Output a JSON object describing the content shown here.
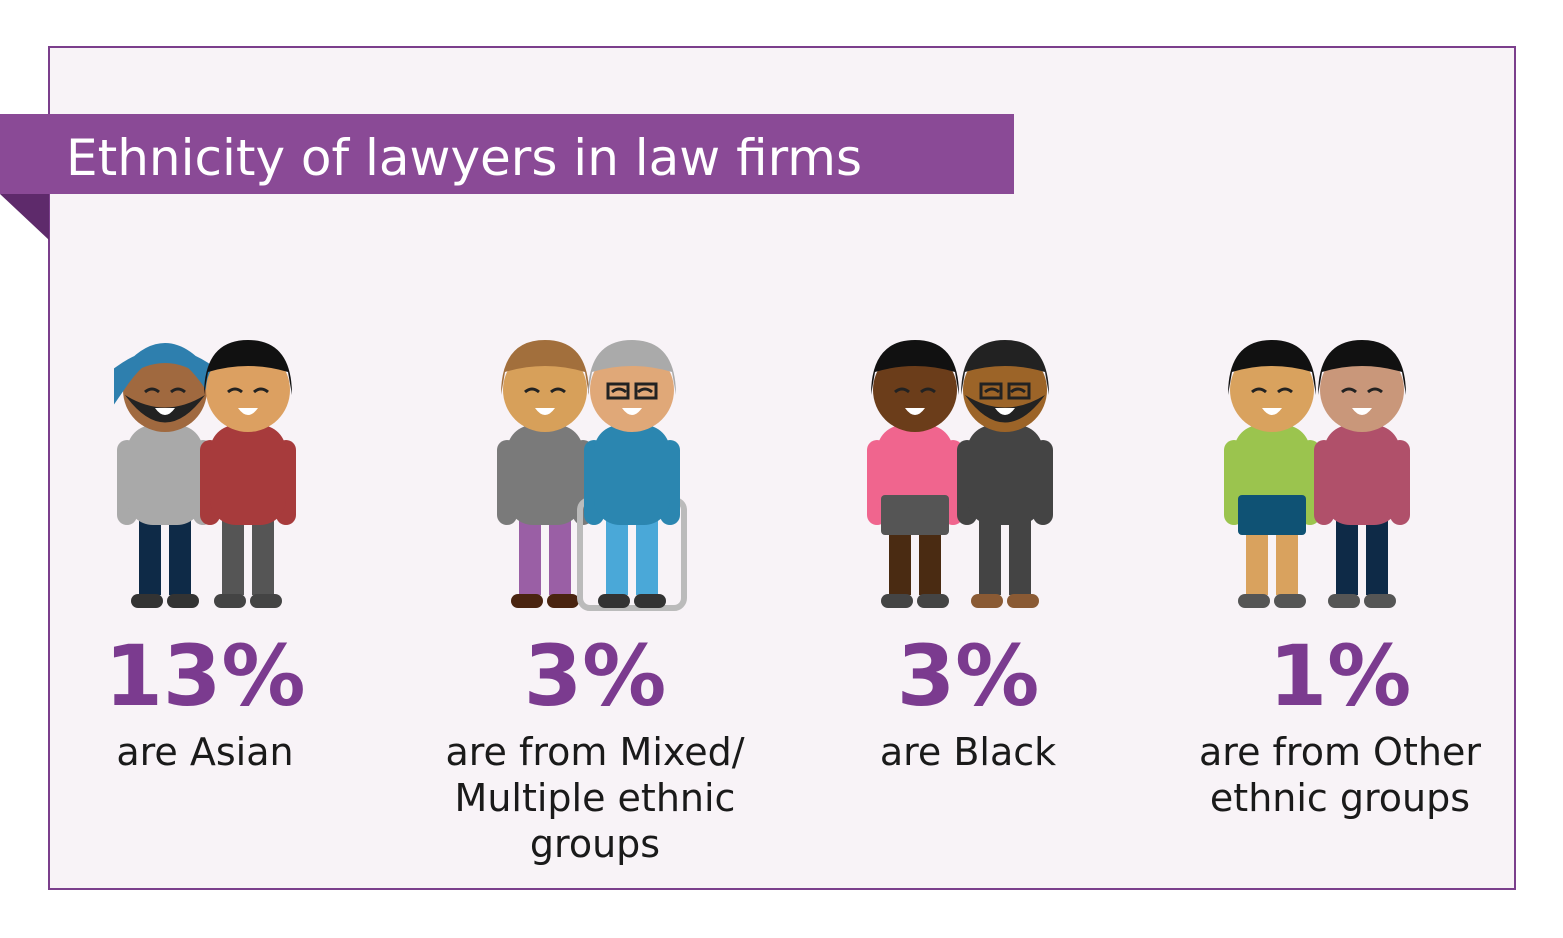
{
  "header": {
    "title": "Ethnicity of lawyers in law firms"
  },
  "items": [
    {
      "percent": "13%",
      "caption": [
        "are Asian"
      ]
    },
    {
      "percent": "3%",
      "caption": [
        "are from Mixed/",
        "Multiple ethnic",
        "groups"
      ]
    },
    {
      "percent": "3%",
      "caption": [
        "are Black"
      ]
    },
    {
      "percent": "1%",
      "caption": [
        "are from Other",
        "ethnic groups"
      ]
    }
  ]
}
